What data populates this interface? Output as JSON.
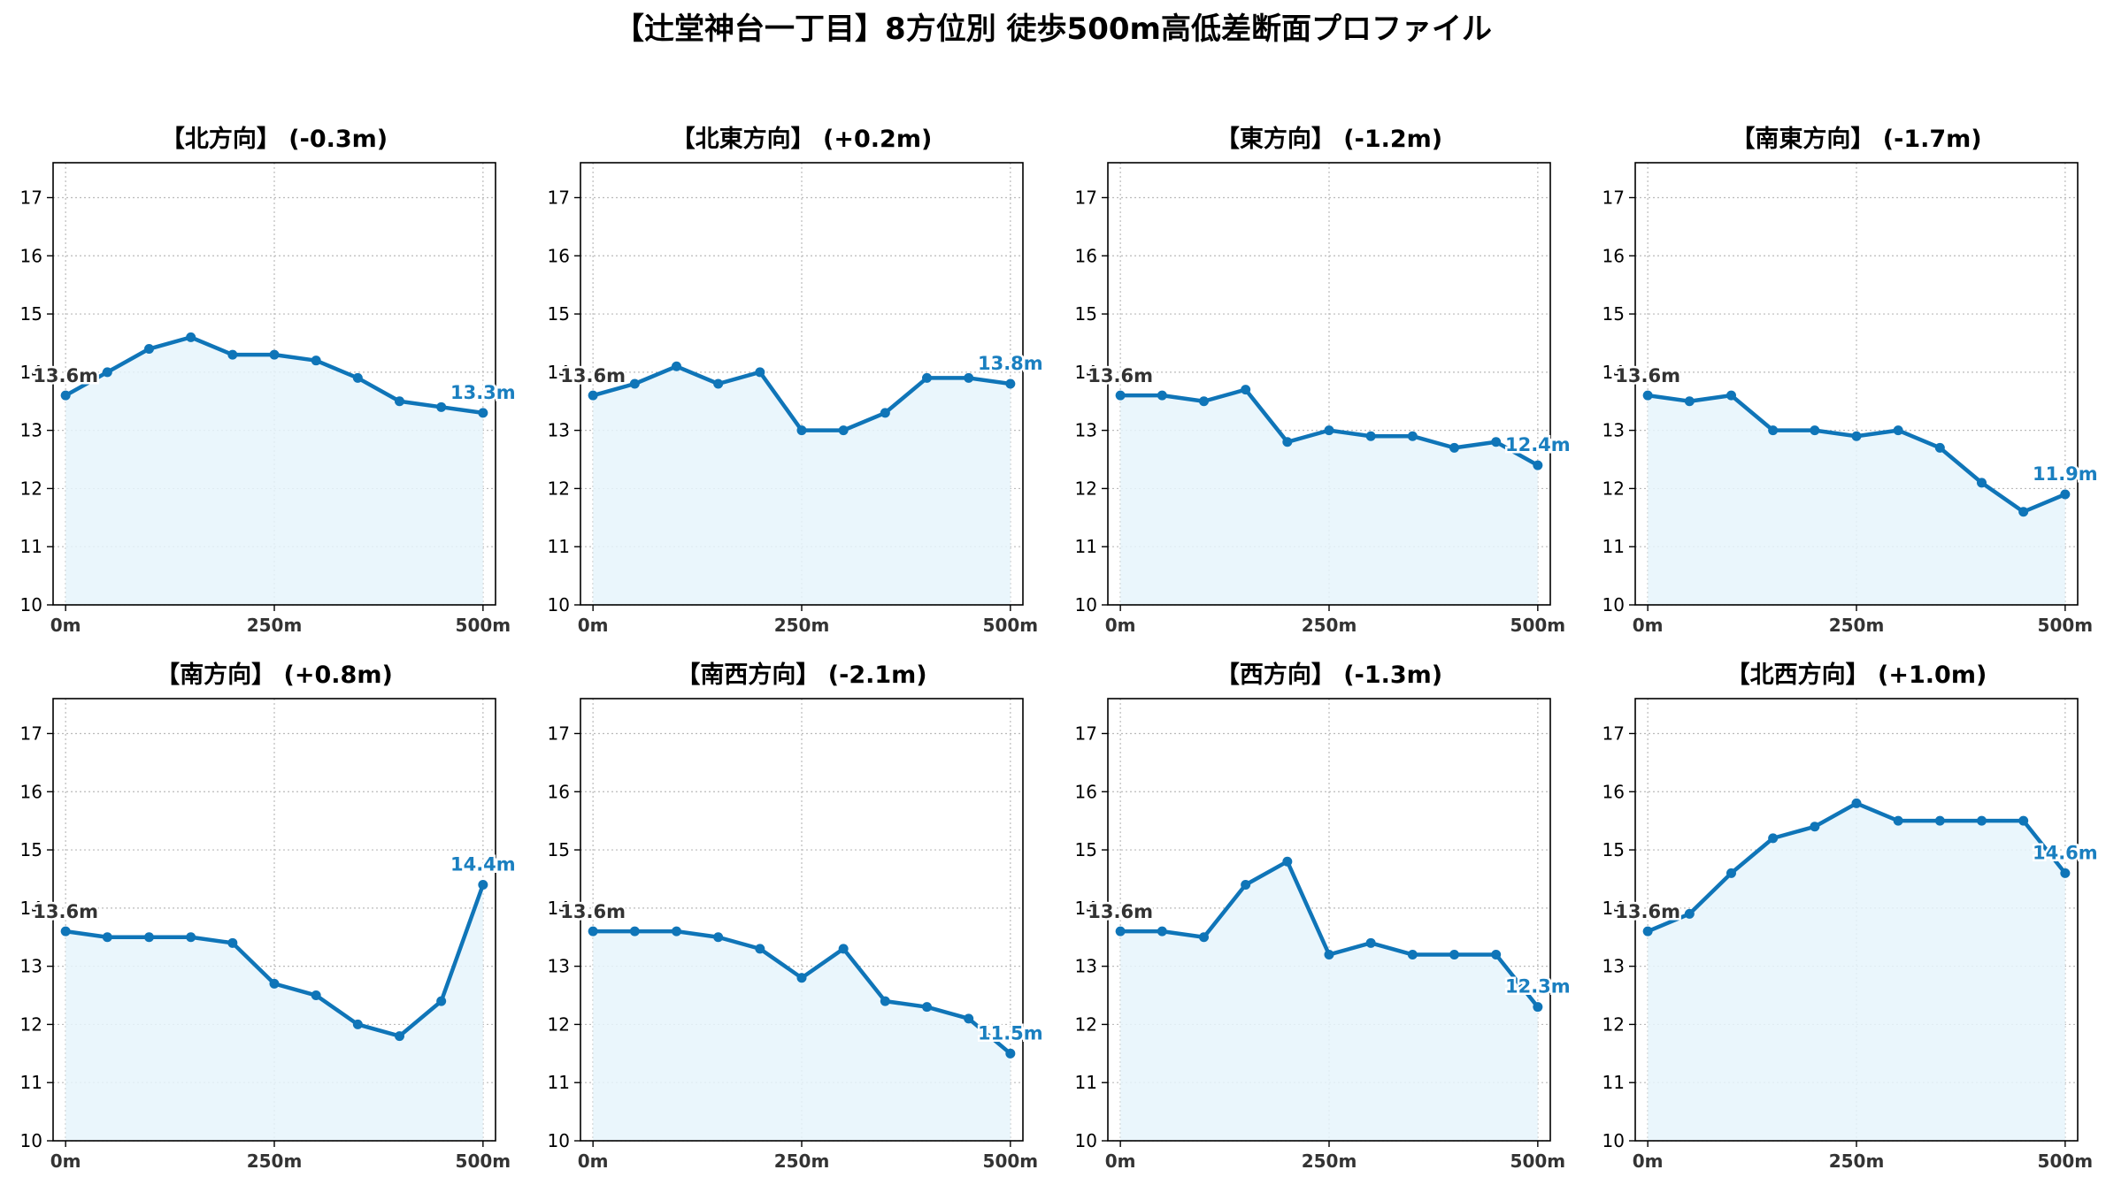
{
  "title": "【辻堂神台一丁目】8方位別 徒歩500m高低差断面プロファイル",
  "colors": {
    "line": "#0f75b8",
    "fill": "#e6f5fb",
    "end_label": "#1a7fc0",
    "start_label": "#333333"
  },
  "chart_data": [
    {
      "type": "area",
      "title": "【北方向】 (-0.3m)",
      "x": [
        0,
        50,
        100,
        150,
        200,
        250,
        300,
        350,
        400,
        450,
        500
      ],
      "values": [
        13.6,
        14.0,
        14.4,
        14.6,
        14.3,
        14.3,
        14.2,
        13.9,
        13.5,
        13.4,
        13.3
      ],
      "start_label": "13.6m",
      "end_label": "13.3m",
      "ylim": [
        10,
        17.6
      ],
      "xlim": [
        -15,
        515
      ],
      "yticks": [
        "10",
        "11",
        "12",
        "13",
        "14",
        "15",
        "16",
        "17"
      ],
      "xticks": [
        "0m",
        "250m",
        "500m"
      ],
      "grid": true
    },
    {
      "type": "area",
      "title": "【北東方向】 (+0.2m)",
      "x": [
        0,
        50,
        100,
        150,
        200,
        250,
        300,
        350,
        400,
        450,
        500
      ],
      "values": [
        13.6,
        13.8,
        14.1,
        13.8,
        14.0,
        13.0,
        13.0,
        13.3,
        13.9,
        13.9,
        13.8
      ],
      "start_label": "13.6m",
      "end_label": "13.8m",
      "ylim": [
        10,
        17.6
      ],
      "xlim": [
        -15,
        515
      ],
      "yticks": [
        "10",
        "11",
        "12",
        "13",
        "14",
        "15",
        "16",
        "17"
      ],
      "xticks": [
        "0m",
        "250m",
        "500m"
      ],
      "grid": true
    },
    {
      "type": "area",
      "title": "【東方向】 (-1.2m)",
      "x": [
        0,
        50,
        100,
        150,
        200,
        250,
        300,
        350,
        400,
        450,
        500
      ],
      "values": [
        13.6,
        13.6,
        13.5,
        13.7,
        12.8,
        13.0,
        12.9,
        12.9,
        12.7,
        12.8,
        12.4
      ],
      "start_label": "13.6m",
      "end_label": "12.4m",
      "ylim": [
        10,
        17.6
      ],
      "xlim": [
        -15,
        515
      ],
      "yticks": [
        "10",
        "11",
        "12",
        "13",
        "14",
        "15",
        "16",
        "17"
      ],
      "xticks": [
        "0m",
        "250m",
        "500m"
      ],
      "grid": true
    },
    {
      "type": "area",
      "title": "【南東方向】 (-1.7m)",
      "x": [
        0,
        50,
        100,
        150,
        200,
        250,
        300,
        350,
        400,
        450,
        500
      ],
      "values": [
        13.6,
        13.5,
        13.6,
        13.0,
        13.0,
        12.9,
        13.0,
        12.7,
        12.1,
        11.6,
        11.9
      ],
      "start_label": "13.6m",
      "end_label": "11.9m",
      "ylim": [
        10,
        17.6
      ],
      "xlim": [
        -15,
        515
      ],
      "yticks": [
        "10",
        "11",
        "12",
        "13",
        "14",
        "15",
        "16",
        "17"
      ],
      "xticks": [
        "0m",
        "250m",
        "500m"
      ],
      "grid": true
    },
    {
      "type": "area",
      "title": "【南方向】 (+0.8m)",
      "x": [
        0,
        50,
        100,
        150,
        200,
        250,
        300,
        350,
        400,
        450,
        500
      ],
      "values": [
        13.6,
        13.5,
        13.5,
        13.5,
        13.4,
        12.7,
        12.5,
        12.0,
        11.8,
        12.4,
        14.4
      ],
      "start_label": "13.6m",
      "end_label": "14.4m",
      "ylim": [
        10,
        17.6
      ],
      "xlim": [
        -15,
        515
      ],
      "yticks": [
        "10",
        "11",
        "12",
        "13",
        "14",
        "15",
        "16",
        "17"
      ],
      "xticks": [
        "0m",
        "250m",
        "500m"
      ],
      "grid": true
    },
    {
      "type": "area",
      "title": "【南西方向】 (-2.1m)",
      "x": [
        0,
        50,
        100,
        150,
        200,
        250,
        300,
        350,
        400,
        450,
        500
      ],
      "values": [
        13.6,
        13.6,
        13.6,
        13.5,
        13.3,
        12.8,
        13.3,
        12.4,
        12.3,
        12.1,
        11.5
      ],
      "start_label": "13.6m",
      "end_label": "11.5m",
      "ylim": [
        10,
        17.6
      ],
      "xlim": [
        -15,
        515
      ],
      "yticks": [
        "10",
        "11",
        "12",
        "13",
        "14",
        "15",
        "16",
        "17"
      ],
      "xticks": [
        "0m",
        "250m",
        "500m"
      ],
      "grid": true
    },
    {
      "type": "area",
      "title": "【西方向】 (-1.3m)",
      "x": [
        0,
        50,
        100,
        150,
        200,
        250,
        300,
        350,
        400,
        450,
        500
      ],
      "values": [
        13.6,
        13.6,
        13.5,
        14.4,
        14.8,
        13.2,
        13.4,
        13.2,
        13.2,
        13.2,
        12.3
      ],
      "start_label": "13.6m",
      "end_label": "12.3m",
      "ylim": [
        10,
        17.6
      ],
      "xlim": [
        -15,
        515
      ],
      "yticks": [
        "10",
        "11",
        "12",
        "13",
        "14",
        "15",
        "16",
        "17"
      ],
      "xticks": [
        "0m",
        "250m",
        "500m"
      ],
      "grid": true
    },
    {
      "type": "area",
      "title": "【北西方向】 (+1.0m)",
      "x": [
        0,
        50,
        100,
        150,
        200,
        250,
        300,
        350,
        400,
        450,
        500
      ],
      "values": [
        13.6,
        13.9,
        14.6,
        15.2,
        15.4,
        15.8,
        15.5,
        15.5,
        15.5,
        15.5,
        14.6
      ],
      "start_label": "13.6m",
      "end_label": "14.6m",
      "ylim": [
        10,
        17.6
      ],
      "xlim": [
        -15,
        515
      ],
      "yticks": [
        "10",
        "11",
        "12",
        "13",
        "14",
        "15",
        "16",
        "17"
      ],
      "xticks": [
        "0m",
        "250m",
        "500m"
      ],
      "grid": true
    }
  ]
}
